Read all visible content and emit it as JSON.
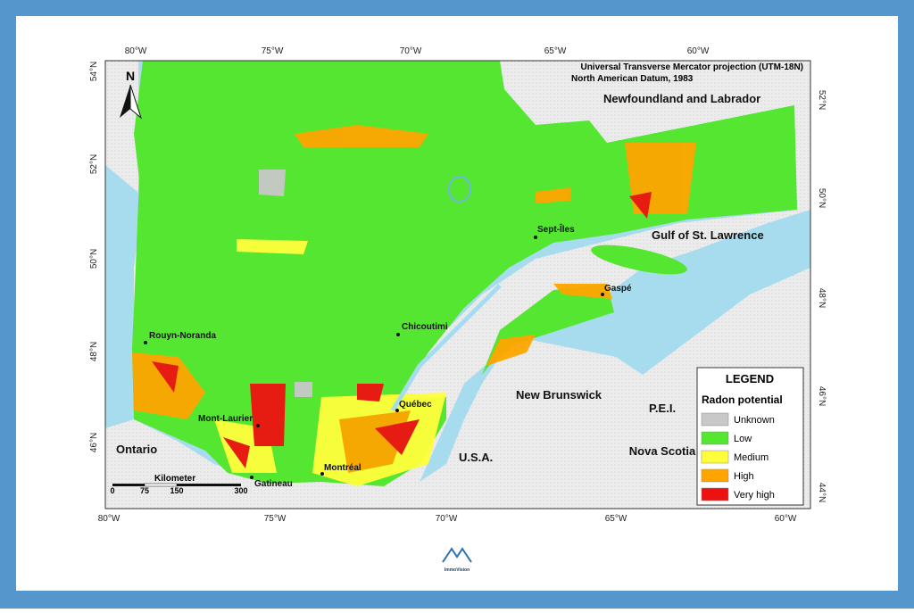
{
  "map": {
    "projection": [
      "Universal Transverse Mercator projection (UTM-18N)",
      "North American Datum, 1983"
    ],
    "top_labels": [
      "80°W",
      "75°W",
      "70°W",
      "65°W",
      "60°W"
    ],
    "bottom_labels": [
      "80°W",
      "75°W",
      "70°W",
      "65°W",
      "60°W"
    ],
    "left_labels": [
      "54°N",
      "52°N",
      "50°N",
      "48°N",
      "46°N"
    ],
    "right_labels": [
      "52°N",
      "50°N",
      "48°N",
      "46°N",
      "44°N"
    ],
    "north": "N",
    "regions": [
      "Newfoundland and Labrador",
      "Gulf of St. Lawrence",
      "Ontario",
      "U.S.A.",
      "New Brunswick",
      "P.E.I.",
      "Nova Scotia"
    ],
    "cities": [
      "Sept-Îles",
      "Gaspé",
      "Chicoutimi",
      "Rouyn-Noranda",
      "Québec",
      "Mont-Laurier",
      "Montréal",
      "Gatineau"
    ],
    "scale": {
      "title": "Kilometer",
      "ticks": [
        "0",
        "75",
        "150",
        "300"
      ]
    }
  },
  "legend": {
    "title": "LEGEND",
    "subtitle": "Radon potential",
    "items": [
      {
        "label": "Unknown",
        "color": "#c8c8c8"
      },
      {
        "label": "Low",
        "color": "#55e632"
      },
      {
        "label": "Medium",
        "color": "#ffff3c"
      },
      {
        "label": "High",
        "color": "#ffa500"
      },
      {
        "label": "Very high",
        "color": "#ee1111"
      }
    ]
  },
  "logo": {
    "text": "ImmoVision"
  }
}
